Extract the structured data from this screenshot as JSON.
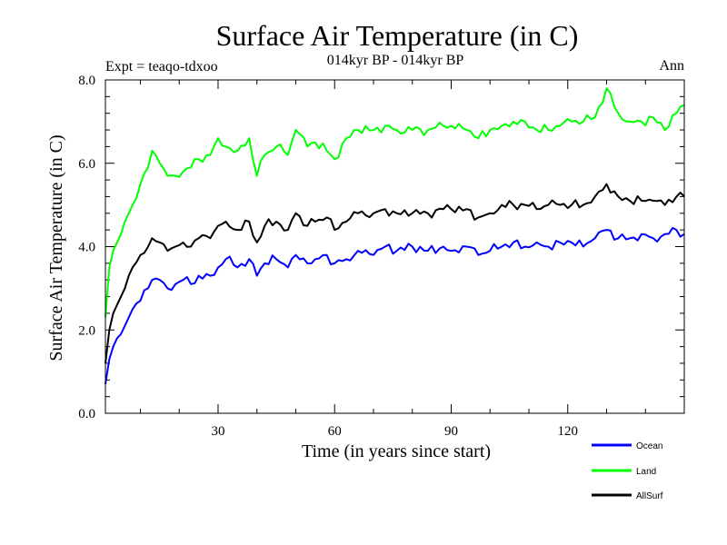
{
  "chart_data": {
    "type": "line",
    "title": "Surface Air Temperature (in C)",
    "subtitle": "014kyr BP - 014kyr BP",
    "left_label": "Expt = teaqo-tdxoo",
    "right_label": "Ann",
    "xlabel": "Time (in years since start)",
    "ylabel": "Surface Air Temperature (in C)",
    "xlim": [
      1,
      150
    ],
    "ylim": [
      0,
      8
    ],
    "xticks": [
      30,
      60,
      90,
      120
    ],
    "yticks": [
      0,
      2,
      4,
      6,
      8
    ],
    "ytick_labels": [
      "0.0",
      "2.0",
      "4.0",
      "6.0",
      "8.0"
    ],
    "x_minor_step": 10,
    "y_minor_step": 0.4,
    "series": [
      {
        "name": "Ocean",
        "color": "#0000ff",
        "anchors": [
          [
            1,
            0.7
          ],
          [
            2,
            1.3
          ],
          [
            3,
            1.6
          ],
          [
            4,
            1.8
          ],
          [
            5,
            1.9
          ],
          [
            6,
            2.1
          ],
          [
            7,
            2.3
          ],
          [
            8,
            2.5
          ],
          [
            10,
            2.7
          ],
          [
            12,
            3.0
          ],
          [
            13,
            3.2
          ],
          [
            15,
            3.2
          ],
          [
            17,
            3.0
          ],
          [
            19,
            3.1
          ],
          [
            21,
            3.2
          ],
          [
            23,
            3.1
          ],
          [
            25,
            3.3
          ],
          [
            28,
            3.3
          ],
          [
            30,
            3.5
          ],
          [
            32,
            3.7
          ],
          [
            35,
            3.5
          ],
          [
            38,
            3.7
          ],
          [
            40,
            3.3
          ],
          [
            42,
            3.6
          ],
          [
            45,
            3.7
          ],
          [
            48,
            3.5
          ],
          [
            50,
            3.8
          ],
          [
            53,
            3.6
          ],
          [
            55,
            3.7
          ],
          [
            58,
            3.8
          ],
          [
            60,
            3.6
          ],
          [
            63,
            3.7
          ],
          [
            66,
            3.9
          ],
          [
            70,
            3.8
          ],
          [
            73,
            4.0
          ],
          [
            76,
            3.9
          ],
          [
            80,
            4.0
          ],
          [
            84,
            3.9
          ],
          [
            88,
            4.0
          ],
          [
            90,
            3.9
          ],
          [
            94,
            4.0
          ],
          [
            97,
            3.8
          ],
          [
            100,
            3.9
          ],
          [
            103,
            4.0
          ],
          [
            106,
            4.1
          ],
          [
            109,
            4.0
          ],
          [
            112,
            4.1
          ],
          [
            115,
            4.0
          ],
          [
            118,
            4.1
          ],
          [
            121,
            4.1
          ],
          [
            124,
            4.0
          ],
          [
            127,
            4.2
          ],
          [
            130,
            4.4
          ],
          [
            133,
            4.2
          ],
          [
            136,
            4.2
          ],
          [
            139,
            4.3
          ],
          [
            142,
            4.2
          ],
          [
            145,
            4.3
          ],
          [
            148,
            4.4
          ],
          [
            150,
            4.3
          ]
        ]
      },
      {
        "name": "Land",
        "color": "#00ff00",
        "anchors": [
          [
            1,
            2.3
          ],
          [
            2,
            3.5
          ],
          [
            3,
            3.9
          ],
          [
            4,
            4.1
          ],
          [
            5,
            4.3
          ],
          [
            6,
            4.6
          ],
          [
            7,
            4.8
          ],
          [
            8,
            5.0
          ],
          [
            10,
            5.5
          ],
          [
            12,
            5.9
          ],
          [
            13,
            6.3
          ],
          [
            15,
            6.0
          ],
          [
            17,
            5.7
          ],
          [
            19,
            5.7
          ],
          [
            21,
            5.8
          ],
          [
            23,
            5.9
          ],
          [
            25,
            6.1
          ],
          [
            28,
            6.2
          ],
          [
            30,
            6.6
          ],
          [
            32,
            6.4
          ],
          [
            35,
            6.3
          ],
          [
            38,
            6.6
          ],
          [
            40,
            5.7
          ],
          [
            42,
            6.2
          ],
          [
            45,
            6.4
          ],
          [
            48,
            6.2
          ],
          [
            50,
            6.8
          ],
          [
            53,
            6.4
          ],
          [
            55,
            6.5
          ],
          [
            58,
            6.3
          ],
          [
            60,
            6.1
          ],
          [
            63,
            6.6
          ],
          [
            66,
            6.8
          ],
          [
            70,
            6.8
          ],
          [
            73,
            6.9
          ],
          [
            76,
            6.8
          ],
          [
            80,
            6.8
          ],
          [
            84,
            6.8
          ],
          [
            88,
            6.9
          ],
          [
            90,
            6.9
          ],
          [
            94,
            6.8
          ],
          [
            97,
            6.6
          ],
          [
            100,
            6.8
          ],
          [
            103,
            6.9
          ],
          [
            106,
            7.0
          ],
          [
            109,
            7.0
          ],
          [
            112,
            6.8
          ],
          [
            115,
            6.8
          ],
          [
            118,
            6.9
          ],
          [
            121,
            7.0
          ],
          [
            124,
            7.0
          ],
          [
            127,
            7.1
          ],
          [
            130,
            7.8
          ],
          [
            133,
            7.2
          ],
          [
            136,
            7.0
          ],
          [
            139,
            7.0
          ],
          [
            142,
            7.1
          ],
          [
            145,
            6.8
          ],
          [
            148,
            7.2
          ],
          [
            150,
            7.4
          ]
        ]
      },
      {
        "name": "AllSurf",
        "color": "#000000",
        "anchors": [
          [
            1,
            1.2
          ],
          [
            2,
            2.0
          ],
          [
            3,
            2.4
          ],
          [
            4,
            2.6
          ],
          [
            5,
            2.8
          ],
          [
            6,
            3.0
          ],
          [
            7,
            3.3
          ],
          [
            8,
            3.5
          ],
          [
            10,
            3.8
          ],
          [
            12,
            4.0
          ],
          [
            13,
            4.2
          ],
          [
            15,
            4.1
          ],
          [
            17,
            3.9
          ],
          [
            19,
            4.0
          ],
          [
            21,
            4.1
          ],
          [
            23,
            4.0
          ],
          [
            25,
            4.2
          ],
          [
            28,
            4.2
          ],
          [
            30,
            4.5
          ],
          [
            32,
            4.6
          ],
          [
            35,
            4.4
          ],
          [
            38,
            4.6
          ],
          [
            40,
            4.1
          ],
          [
            42,
            4.5
          ],
          [
            45,
            4.6
          ],
          [
            48,
            4.4
          ],
          [
            50,
            4.8
          ],
          [
            53,
            4.5
          ],
          [
            55,
            4.6
          ],
          [
            58,
            4.7
          ],
          [
            60,
            4.4
          ],
          [
            63,
            4.6
          ],
          [
            66,
            4.8
          ],
          [
            70,
            4.8
          ],
          [
            73,
            4.9
          ],
          [
            76,
            4.8
          ],
          [
            80,
            4.8
          ],
          [
            84,
            4.8
          ],
          [
            88,
            4.9
          ],
          [
            90,
            4.9
          ],
          [
            94,
            4.9
          ],
          [
            97,
            4.7
          ],
          [
            100,
            4.8
          ],
          [
            103,
            5.0
          ],
          [
            106,
            5.0
          ],
          [
            109,
            5.0
          ],
          [
            112,
            4.9
          ],
          [
            115,
            5.0
          ],
          [
            118,
            5.0
          ],
          [
            121,
            5.0
          ],
          [
            124,
            5.0
          ],
          [
            127,
            5.2
          ],
          [
            130,
            5.5
          ],
          [
            133,
            5.2
          ],
          [
            136,
            5.1
          ],
          [
            139,
            5.1
          ],
          [
            142,
            5.1
          ],
          [
            145,
            5.0
          ],
          [
            148,
            5.2
          ],
          [
            150,
            5.2
          ]
        ]
      }
    ],
    "legend": [
      {
        "label": "Ocean",
        "color": "#0000ff"
      },
      {
        "label": "Land",
        "color": "#00ff00"
      },
      {
        "label": "AllSurf",
        "color": "#000000"
      }
    ]
  }
}
